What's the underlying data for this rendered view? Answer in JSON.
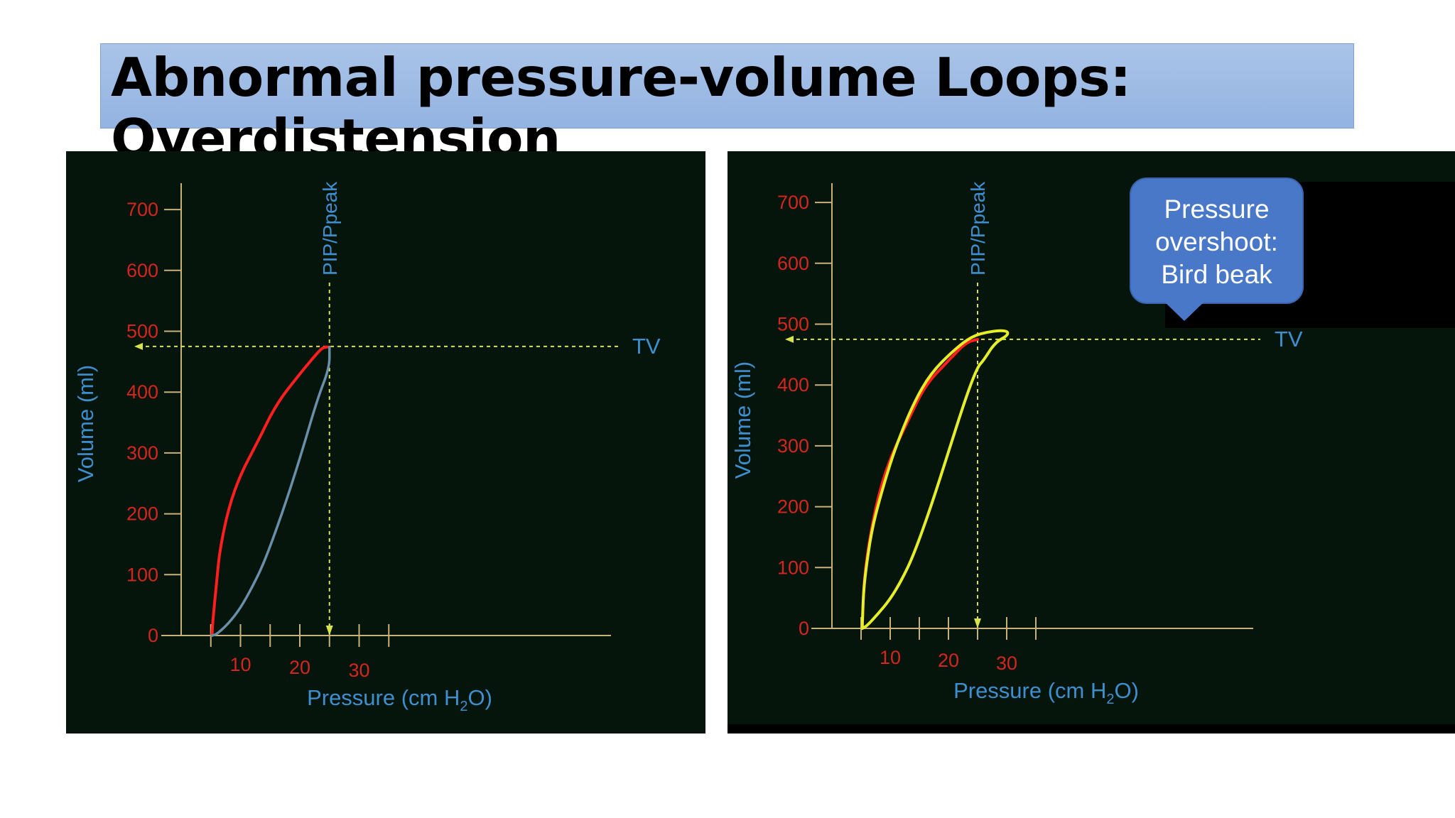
{
  "slide": {
    "title": "Abnormal pressure-volume Loops:\nOverdistension"
  },
  "callout": {
    "lines": [
      "Pressure",
      "overshoot:",
      "Bird beak"
    ]
  },
  "colors": {
    "panel_bg": "#06150c",
    "axis": "#c8b27a",
    "tick_label": "#d2261e",
    "axis_title": "#3e8fcf",
    "inspiratory": "#ff1f1f",
    "expiratory_normal": "#6a8fa8",
    "overdistension_loop": "#e6ee2a",
    "guide_line": "#d8e34a",
    "callout_bg": "#4a78c9"
  },
  "chart_data": [
    {
      "type": "line",
      "panel": "left",
      "title": "",
      "xlabel": "Pressure (cm H2O)",
      "ylabel": "Volume (ml)",
      "x_ticks": [
        10,
        20,
        30
      ],
      "y_ticks": [
        0,
        100,
        200,
        300,
        400,
        500,
        600,
        700
      ],
      "xlim": [
        0,
        36
      ],
      "ylim": [
        0,
        720
      ],
      "reference_lines": [
        {
          "label": "TV",
          "orientation": "horizontal",
          "value": 475
        },
        {
          "label": "PIP/Ppeak",
          "orientation": "vertical",
          "value": 25
        }
      ],
      "series": [
        {
          "role": "inspiration",
          "color": "red",
          "points": [
            [
              5.2,
              0
            ],
            [
              5.3,
              20
            ],
            [
              6,
              90
            ],
            [
              6.5,
              140
            ],
            [
              8,
              210
            ],
            [
              10,
              265
            ],
            [
              13,
              320
            ],
            [
              16,
              380
            ],
            [
              20,
              430
            ],
            [
              23,
              465
            ],
            [
              24,
              474
            ],
            [
              25,
              474
            ]
          ]
        },
        {
          "role": "expiration",
          "color": "grey-blue",
          "points": [
            [
              25,
              474
            ],
            [
              25,
              440
            ],
            [
              23,
              390
            ],
            [
              20,
              290
            ],
            [
              17,
              200
            ],
            [
              14,
              120
            ],
            [
              12,
              80
            ],
            [
              10,
              45
            ],
            [
              8,
              20
            ],
            [
              6,
              2
            ],
            [
              5.2,
              0
            ]
          ]
        }
      ]
    },
    {
      "type": "line",
      "panel": "right",
      "title": "",
      "xlabel": "Pressure (cm H2O)",
      "ylabel": "Volume (ml)",
      "x_ticks": [
        10,
        20,
        30
      ],
      "y_ticks": [
        0,
        100,
        200,
        300,
        400,
        500,
        600,
        700
      ],
      "xlim": [
        0,
        36
      ],
      "ylim": [
        0,
        720
      ],
      "reference_lines": [
        {
          "label": "TV",
          "orientation": "horizontal",
          "value": 475
        },
        {
          "label": "PIP/Ppeak",
          "orientation": "vertical",
          "value": 25
        }
      ],
      "series": [
        {
          "role": "inspiration",
          "color": "red",
          "points": [
            [
              5.2,
              0
            ],
            [
              5.5,
              80
            ],
            [
              6.5,
              150
            ],
            [
              8,
              220
            ],
            [
              10,
              280
            ],
            [
              13,
              340
            ],
            [
              16,
              400
            ],
            [
              20,
              440
            ],
            [
              23,
              470
            ],
            [
              25,
              475
            ]
          ]
        },
        {
          "role": "overdistension loop",
          "color": "yellow",
          "points": [
            [
              5.2,
              0
            ],
            [
              5.4,
              60
            ],
            [
              6,
              110
            ],
            [
              7,
              170
            ],
            [
              9,
              240
            ],
            [
              11,
              300
            ],
            [
              14,
              370
            ],
            [
              17,
              420
            ],
            [
              21,
              458
            ],
            [
              24,
              480
            ],
            [
              27,
              488
            ],
            [
              30,
              490
            ],
            [
              30.3,
              482
            ],
            [
              28,
              470
            ],
            [
              26,
              440
            ],
            [
              25,
              430
            ],
            [
              23,
              380
            ],
            [
              20,
              290
            ],
            [
              17,
              200
            ],
            [
              14,
              120
            ],
            [
              12,
              80
            ],
            [
              10,
              48
            ],
            [
              8,
              25
            ],
            [
              6,
              4
            ],
            [
              5.2,
              0
            ]
          ]
        }
      ]
    }
  ]
}
